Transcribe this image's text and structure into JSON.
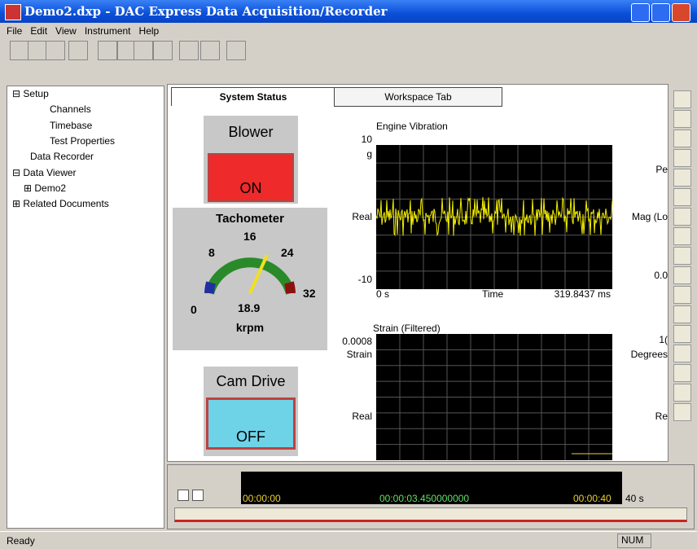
{
  "window": {
    "title": "Demo2.dxp - DAC Express Data Acquisition/Recorder"
  },
  "menu": [
    "File",
    "Edit",
    "View",
    "Instrument",
    "Help"
  ],
  "tree": [
    "Setup",
    "Channels",
    "Timebase",
    "Test Properties",
    "Data Recorder",
    "Data Viewer",
    "Demo2",
    "Related Documents"
  ],
  "tabs": [
    "System Status",
    "Workspace Tab"
  ],
  "blower": {
    "label": "Blower",
    "state": "ON"
  },
  "tachometer": {
    "title": "Tachometer",
    "scale": [
      "0",
      "8",
      "16",
      "24",
      "32"
    ],
    "reading": "18.9",
    "unit": "krpm"
  },
  "cam_drive": {
    "label": "Cam Drive",
    "state": "OFF"
  },
  "vibration_plot": {
    "title": "Engine Vibration",
    "y_top": "10",
    "y_unit": "g",
    "y_label": "Real",
    "y_bottom": "-10",
    "x_start": "0 s",
    "x_label": "Time",
    "x_end": "319.8437 ms"
  },
  "strain_plot": {
    "title": "Strain (Filtered)",
    "y_top": "0.0008",
    "y_unit": "Strain",
    "y_label": "Real"
  },
  "clipped_labels": [
    "Pe",
    "Mag (Lo",
    "0.0",
    "1(",
    "Degrees",
    "Re"
  ],
  "timeline": {
    "start": "00:00:00",
    "current": "00:00:03.450000000",
    "end": "00:00:40",
    "span": "40 s"
  },
  "status": {
    "text": "Ready",
    "num": "NUM"
  }
}
